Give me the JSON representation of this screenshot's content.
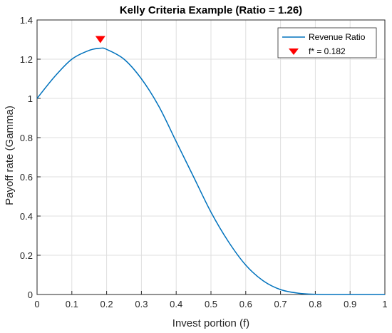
{
  "chart_data": {
    "type": "line",
    "title": "Kelly Criteria Example (Ratio = 1.26)",
    "xlabel": "Invest portion (f)",
    "ylabel": "Payoff rate (Gamma)",
    "xlim": [
      0,
      1
    ],
    "ylim": [
      0,
      1.4
    ],
    "xticks": [
      "0",
      "0.1",
      "0.2",
      "0.3",
      "0.4",
      "0.5",
      "0.6",
      "0.7",
      "0.8",
      "0.9",
      "1"
    ],
    "xtick_values": [
      0,
      0.1,
      0.2,
      0.3,
      0.4,
      0.5,
      0.6,
      0.7,
      0.8,
      0.9,
      1
    ],
    "yticks": [
      "0",
      "0.2",
      "0.4",
      "0.6",
      "0.8",
      "1",
      "1.2",
      "1.4"
    ],
    "ytick_values": [
      0,
      0.2,
      0.4,
      0.6,
      0.8,
      1,
      1.2,
      1.4
    ],
    "grid": true,
    "legend_position": "top-right",
    "series": [
      {
        "name": "Revenue Ratio",
        "color": "#0072BD",
        "x": [
          0,
          0.05,
          0.1,
          0.15,
          0.182,
          0.2,
          0.25,
          0.3,
          0.35,
          0.4,
          0.45,
          0.5,
          0.55,
          0.6,
          0.65,
          0.7,
          0.75,
          0.8,
          0.85,
          0.9,
          0.95,
          1
        ],
        "y": [
          1.0,
          1.11,
          1.2,
          1.245,
          1.256,
          1.25,
          1.2,
          1.1,
          0.96,
          0.78,
          0.6,
          0.42,
          0.27,
          0.15,
          0.07,
          0.025,
          0.007,
          0.001,
          0.0,
          0.0,
          0.0,
          0.0
        ]
      }
    ],
    "marker": {
      "name": "f* = 0.182",
      "x": 0.182,
      "y": 1.3,
      "color": "#FF0000",
      "shape": "down-triangle"
    }
  }
}
